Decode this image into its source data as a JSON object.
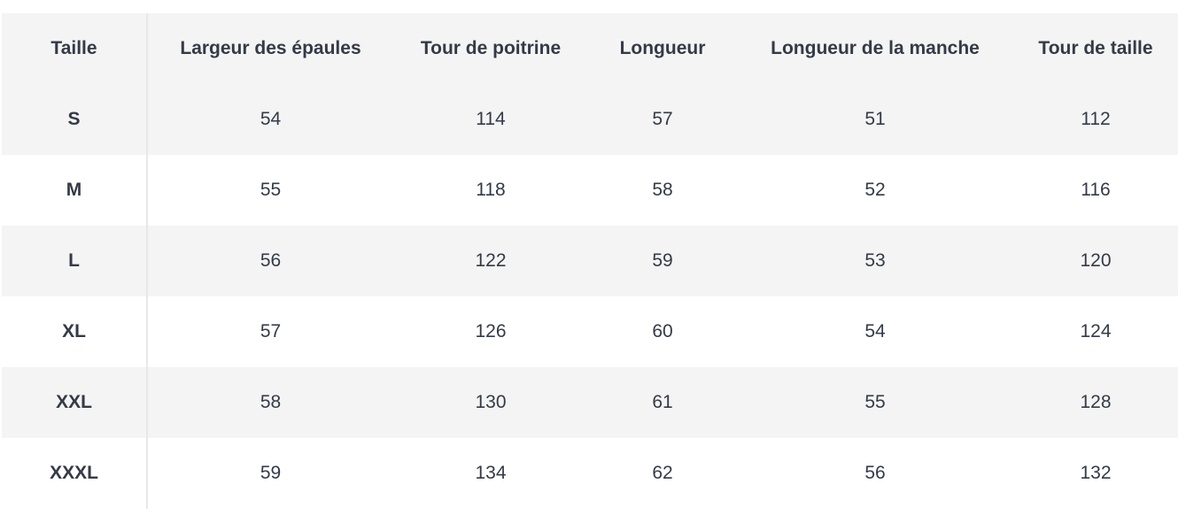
{
  "table": {
    "headers": [
      "Taille",
      "Largeur des épaules",
      "Tour de poitrine",
      "Longueur",
      "Longueur de la manche",
      "Tour de taille"
    ],
    "rows": [
      [
        "S",
        "54",
        "114",
        "57",
        "51",
        "112"
      ],
      [
        "M",
        "55",
        "118",
        "58",
        "52",
        "116"
      ],
      [
        "L",
        "56",
        "122",
        "59",
        "53",
        "120"
      ],
      [
        "XL",
        "57",
        "126",
        "60",
        "54",
        "124"
      ],
      [
        "XXL",
        "58",
        "130",
        "61",
        "55",
        "128"
      ],
      [
        "XXXL",
        "59",
        "134",
        "62",
        "56",
        "132"
      ]
    ]
  }
}
